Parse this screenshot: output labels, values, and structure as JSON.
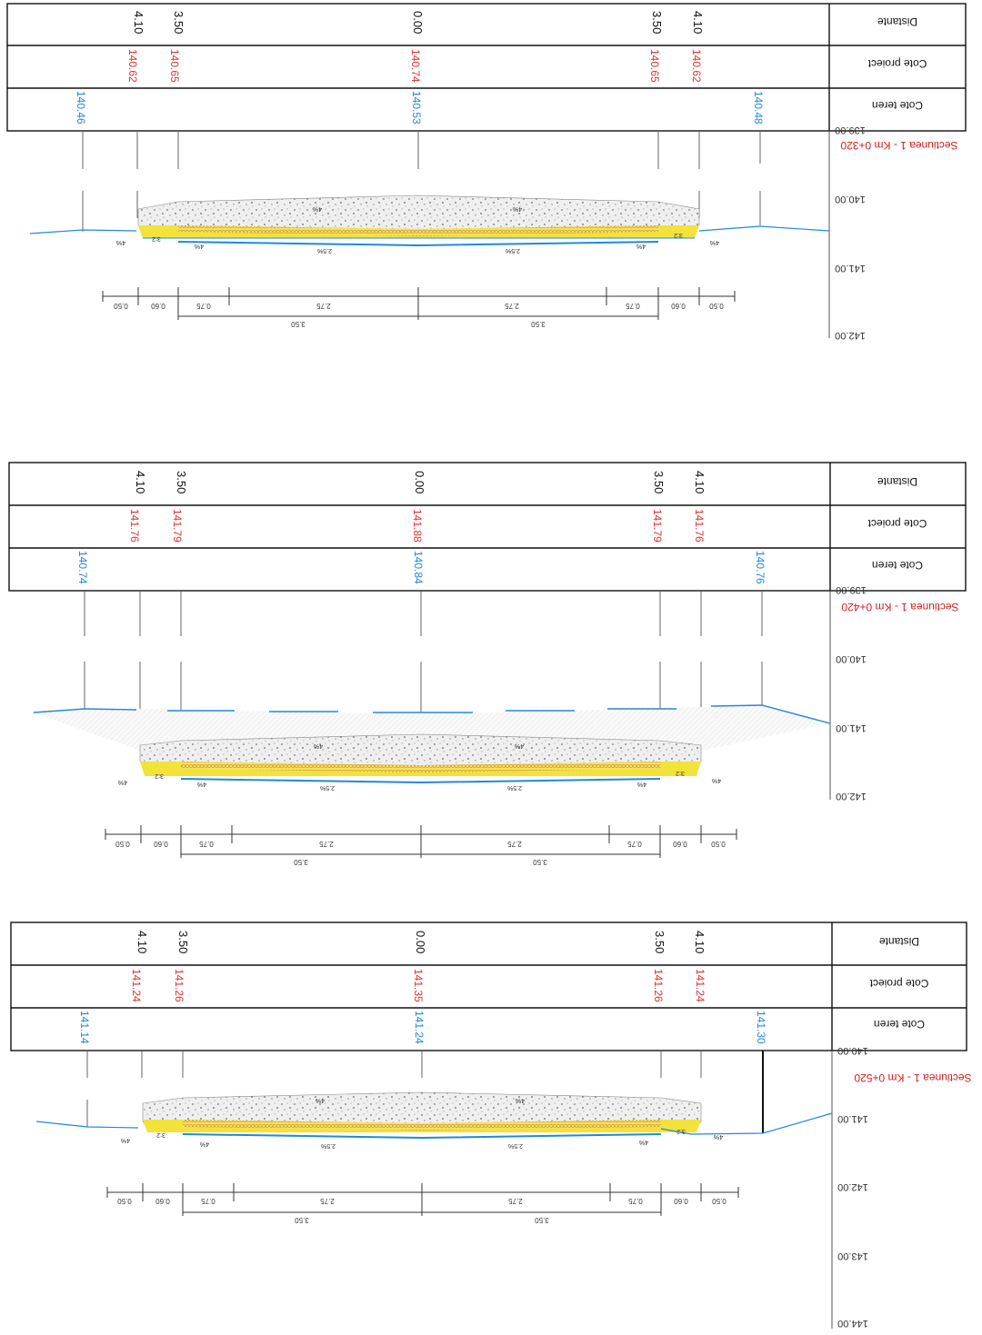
{
  "sections": [
    {
      "title": "Sectiunea 1 - Km 0+320",
      "row_labels": {
        "distance": "Distante",
        "project": "Cote proiect",
        "terrain": "Cote teren"
      },
      "elevations": [
        "139.00",
        "140.00",
        "141.00",
        "142.00"
      ],
      "distances": [
        "4.10",
        "3.50",
        "0.00",
        "3.50",
        "4.10"
      ],
      "project_levels": [
        "140.62",
        "140.65",
        "140.74",
        "140.65",
        "140.62"
      ],
      "terrain_levels": [
        "140.46",
        "140.53",
        "140.48"
      ],
      "slopes": [
        "4%",
        "2.5%",
        "2.5%",
        "4%",
        "3:2",
        "3:2",
        "4%",
        "4%",
        "4%",
        "4%"
      ],
      "dims_top": [
        "0.50",
        "0.60",
        "0.75",
        "2.75",
        "2.75",
        "0.75",
        "0.60",
        "0.50"
      ],
      "dims_bottom": [
        "3.50",
        "3.50"
      ]
    },
    {
      "title": "Sectiunea 1 - Km 0+420",
      "row_labels": {
        "distance": "Distante",
        "project": "Cote proiect",
        "terrain": "Cote teren"
      },
      "elevations": [
        "139.00",
        "140.00",
        "141.00",
        "142.00"
      ],
      "distances": [
        "4.10",
        "3.50",
        "0.00",
        "3.50",
        "4.10"
      ],
      "project_levels": [
        "141.76",
        "141.79",
        "141.88",
        "141.79",
        "141.76"
      ],
      "terrain_levels": [
        "140.74",
        "140.84",
        "140.76"
      ],
      "slopes": [
        "4%",
        "2.5%",
        "2.5%",
        "4%",
        "3:2",
        "3:2",
        "4%",
        "4%",
        "4%",
        "4%"
      ],
      "dims_top": [
        "0.50",
        "0.60",
        "0.75",
        "2.75",
        "2.75",
        "0.75",
        "0.60",
        "0.50"
      ],
      "dims_bottom": [
        "3.50",
        "3.50"
      ]
    },
    {
      "title": "Sectiunea 1 - Km 0+520",
      "row_labels": {
        "distance": "Distante",
        "project": "Cote proiect",
        "terrain": "Cote teren"
      },
      "elevations": [
        "140.00",
        "141.00",
        "142.00",
        "143.00",
        "144.00"
      ],
      "distances": [
        "4.10",
        "3.50",
        "0.00",
        "3.50",
        "4.10"
      ],
      "project_levels": [
        "141.24",
        "141.26",
        "141.35",
        "141.26",
        "141.24"
      ],
      "terrain_levels": [
        "141.14",
        "141.24",
        "141.30"
      ],
      "slopes": [
        "4%",
        "2.5%",
        "2.5%",
        "4%",
        "3:2",
        "3:2",
        "4%",
        "4%",
        "4%",
        "4%"
      ],
      "dims_top": [
        "0.50",
        "0.60",
        "0.75",
        "2.75",
        "2.75",
        "0.75",
        "0.60",
        "0.50"
      ],
      "dims_bottom": [
        "3.50",
        "3.50"
      ]
    }
  ],
  "colors": {
    "project": "#e03030",
    "terrain": "#2288dd",
    "base_layer": "#f2e23a",
    "wearing_layer": "#e9b35a",
    "aggregate": "#e8e8e8"
  }
}
